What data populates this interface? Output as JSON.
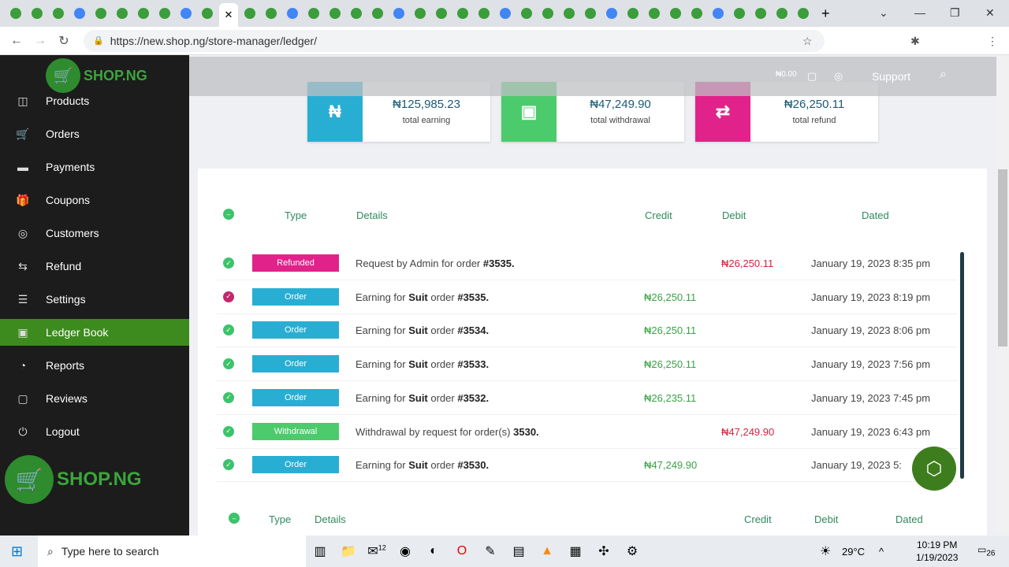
{
  "browser": {
    "url": "https://new.shop.ng/store-manager/ledger/",
    "tab_count": 38
  },
  "sidebar": {
    "logo": "SHOP.NG",
    "items": [
      {
        "label": "Products",
        "icon": "cube-icon"
      },
      {
        "label": "Orders",
        "icon": "cart-icon"
      },
      {
        "label": "Payments",
        "icon": "card-icon"
      },
      {
        "label": "Coupons",
        "icon": "gift-icon"
      },
      {
        "label": "Customers",
        "icon": "user-icon"
      },
      {
        "label": "Refund",
        "icon": "refund-icon"
      },
      {
        "label": "Settings",
        "icon": "sliders-icon"
      },
      {
        "label": "Ledger Book",
        "icon": "money-icon",
        "active": true
      },
      {
        "label": "Reports",
        "icon": "chart-icon"
      },
      {
        "label": "Reviews",
        "icon": "comment-icon"
      },
      {
        "label": "Logout",
        "icon": "power-icon"
      }
    ]
  },
  "topbar": {
    "balance": "₦0.00",
    "support": "Support"
  },
  "summary": [
    {
      "amount": "₦125,985.23",
      "label": "total earning",
      "color": "#29aed3",
      "icon": "₦"
    },
    {
      "amount": "₦47,249.90",
      "label": "total withdrawal",
      "color": "#4ccb6c",
      "icon": "▣"
    },
    {
      "amount": "₦26,250.11",
      "label": "total refund",
      "color": "#e2228b",
      "icon": "⇄"
    }
  ],
  "table": {
    "headers": {
      "type": "Type",
      "details": "Details",
      "credit": "Credit",
      "debit": "Debit",
      "dated": "Dated"
    },
    "rows": [
      {
        "type": "Refunded",
        "color": "#e2228b",
        "pre": "Request by Admin for order ",
        "bold": "",
        "mid": "",
        "ref": "#3535.",
        "credit": "",
        "debit": "₦26,250.11",
        "date": "January 19, 2023 8:35 pm",
        "status": "#3cc36b"
      },
      {
        "type": "Order",
        "color": "#29aed3",
        "pre": "Earning for ",
        "bold": "Suit",
        "mid": " order ",
        "ref": "#3535.",
        "credit": "₦26,250.11",
        "debit": "",
        "date": "January 19, 2023 8:19 pm",
        "status": "#c2286e"
      },
      {
        "type": "Order",
        "color": "#29aed3",
        "pre": "Earning for ",
        "bold": "Suit",
        "mid": " order ",
        "ref": "#3534.",
        "credit": "₦26,250.11",
        "debit": "",
        "date": "January 19, 2023 8:06 pm",
        "status": "#3cc36b"
      },
      {
        "type": "Order",
        "color": "#29aed3",
        "pre": "Earning for ",
        "bold": "Suit",
        "mid": " order ",
        "ref": "#3533.",
        "credit": "₦26,250.11",
        "debit": "",
        "date": "January 19, 2023 7:56 pm",
        "status": "#3cc36b"
      },
      {
        "type": "Order",
        "color": "#29aed3",
        "pre": "Earning for ",
        "bold": "Suit",
        "mid": " order ",
        "ref": "#3532.",
        "credit": "₦26,235.11",
        "debit": "",
        "date": "January 19, 2023 7:45 pm",
        "status": "#3cc36b"
      },
      {
        "type": "Withdrawal",
        "color": "#4ccb6c",
        "pre": "Withdrawal by request for order(s) ",
        "bold": "",
        "mid": "",
        "ref": "3530.",
        "credit": "",
        "debit": "₦47,249.90",
        "date": "January 19, 2023 6:43 pm",
        "status": "#3cc36b"
      },
      {
        "type": "Order",
        "color": "#29aed3",
        "pre": "Earning for ",
        "bold": "Suit",
        "mid": " order ",
        "ref": "#3530.",
        "credit": "₦47,249.90",
        "debit": "",
        "date": "January 19, 2023 5:",
        "status": "#3cc36b"
      }
    ]
  },
  "taskbar": {
    "search_placeholder": "Type here to search",
    "weather": "29°C",
    "time": "10:19 PM",
    "date": "1/19/2023",
    "mail_count": "12",
    "notif_count": "26"
  }
}
